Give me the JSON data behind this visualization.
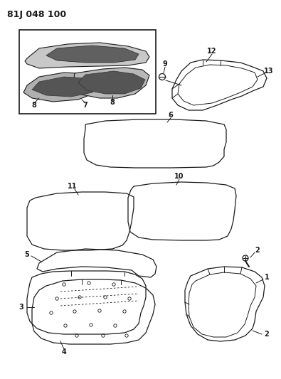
{
  "title": "81J 048 100",
  "bg_color": "#ffffff",
  "line_color": "#1a1a1a",
  "figsize": [
    3.95,
    5.33
  ],
  "dpi": 100
}
